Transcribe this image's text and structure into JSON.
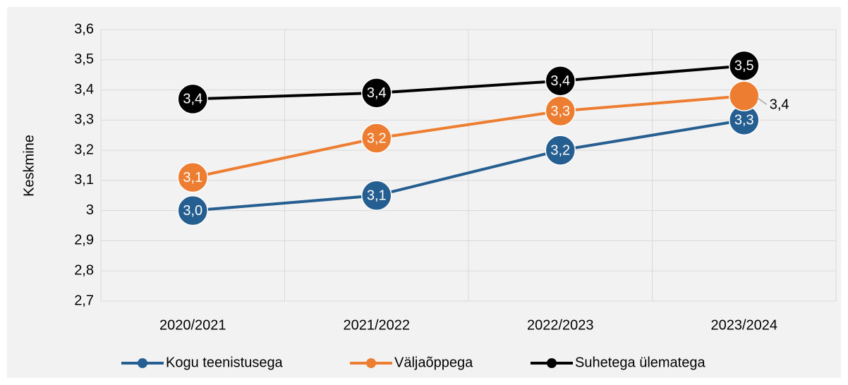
{
  "chart_data": {
    "type": "line",
    "y_label": "Keskmine",
    "categories": [
      "2020/2021",
      "2021/2022",
      "2022/2023",
      "2023/2024"
    ],
    "series": [
      {
        "name": "Kogu teenistusega",
        "color": "#255e91",
        "values": [
          3.0,
          3.05,
          3.2,
          3.3
        ],
        "value_labels": [
          "3,0",
          "3,1",
          "3,2",
          "3,3"
        ]
      },
      {
        "name": "Väljaõppega",
        "color": "#ed7d31",
        "values": [
          3.11,
          3.24,
          3.33,
          3.38
        ],
        "value_labels": [
          "3,1",
          "3,2",
          "3,3",
          "3,4"
        ]
      },
      {
        "name": "Suhetega ülematega",
        "color": "#000000",
        "values": [
          3.37,
          3.39,
          3.43,
          3.48
        ],
        "value_labels": [
          "3,4",
          "3,4",
          "3,4",
          "3,5"
        ]
      }
    ],
    "ylim": [
      2.7,
      3.6
    ],
    "yticks": [
      {
        "value": 2.7,
        "label": "2,7"
      },
      {
        "value": 2.8,
        "label": "2,8"
      },
      {
        "value": 2.9,
        "label": "2,9"
      },
      3,
      {
        "value": 3.1,
        "label": "3,1"
      },
      {
        "value": 3.2,
        "label": "3,2"
      },
      {
        "value": 3.3,
        "label": "3,3"
      },
      {
        "value": 3.4,
        "label": "3,4"
      },
      {
        "value": 3.5,
        "label": "3,5"
      },
      {
        "value": 3.6,
        "label": "3,6"
      }
    ],
    "grid": true,
    "legend": "bottom"
  }
}
